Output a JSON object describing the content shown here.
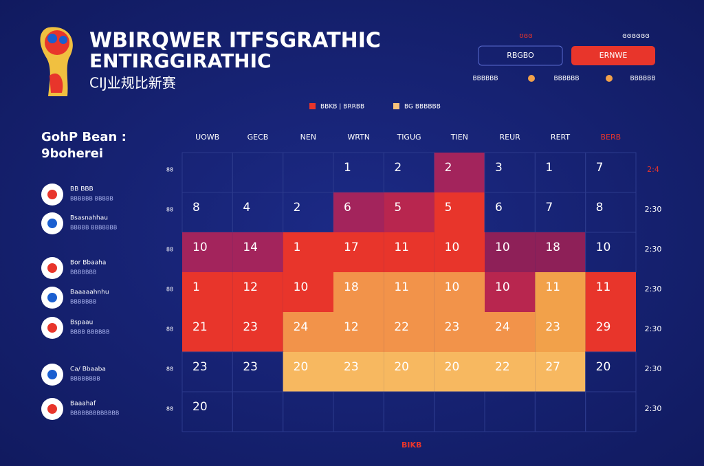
{
  "header": {
    "title_lines": [
      "WBIRQWER ITFSGRATHIC",
      "ENTIRGGIRATHIC"
    ],
    "subtitle": "CIJ业规比新赛"
  },
  "controls": {
    "top_labels": [
      "ʊɞɞ",
      "ɞɞɞɞɞɞ"
    ],
    "buttons": [
      "RBGBO",
      "ERNWE"
    ],
    "stats": [
      "BBBBBB",
      "BBBBBB",
      "BBBBBB"
    ]
  },
  "legend": {
    "items": [
      {
        "label": "BBKB  |  BRRBB",
        "color": "#e8352b"
      },
      {
        "label": "BG BBBBBB",
        "color": "#f7c27a"
      }
    ]
  },
  "sidebar": {
    "title_lines": [
      "GohP Bean :",
      "9boherei"
    ],
    "teams": [
      {
        "name": "BB BBB",
        "sub": "BBBBBB BBBBB"
      },
      {
        "name": "Bsasnahhau",
        "sub": "BBBBB BBBBBBB"
      },
      {
        "name": "Bor Bbaaha",
        "sub": "BBBBBBB"
      },
      {
        "name": "Baaaaahnhu",
        "sub": "BBBBBBB"
      },
      {
        "name": "Bspaau",
        "sub": "BBBB BBBBBB"
      },
      {
        "name": "Ca/ Bbaaba",
        "sub": "BBBBBBBB"
      },
      {
        "name": "Baaahaf",
        "sub": "BBBBBBBBBBBBB"
      }
    ]
  },
  "grid": {
    "columns": [
      "UOWB",
      "GECB",
      "NEN",
      "WRTN",
      "TIGUG",
      "TIEN",
      "REUR",
      "RERT",
      "BERB"
    ],
    "row_labels": [
      "88",
      "88",
      "88",
      "88",
      "88",
      "88",
      "88"
    ],
    "time_labels": [
      "2:4",
      "2:30",
      "2:30",
      "2:30",
      "2:30",
      "2:30",
      "2:30"
    ],
    "rows": [
      [
        null,
        null,
        null,
        1,
        2,
        2,
        3,
        1,
        7
      ],
      [
        8,
        4,
        2,
        6,
        5,
        5,
        6,
        7,
        8
      ],
      [
        10,
        14,
        1,
        17,
        11,
        10,
        10,
        18,
        10
      ],
      [
        1,
        12,
        10,
        18,
        11,
        10,
        10,
        11,
        11
      ],
      [
        21,
        23,
        24,
        12,
        22,
        23,
        24,
        23,
        29
      ],
      [
        23,
        23,
        20,
        23,
        20,
        20,
        22,
        27,
        20
      ],
      [
        20,
        null,
        null,
        null,
        null,
        null,
        null,
        null,
        null
      ]
    ],
    "fills": [
      [
        null,
        null,
        null,
        null,
        null,
        "#a3245c",
        null,
        null,
        null
      ],
      [
        null,
        null,
        null,
        "#a3245c",
        "#b8264f",
        "#e8352b",
        null,
        null,
        null
      ],
      [
        "#a3245c",
        "#a3245c",
        "#e8352b",
        "#e8352b",
        "#e8352b",
        "#e8352b",
        "#8e2058",
        "#8e2058",
        null
      ],
      [
        "#e8352b",
        "#e8352b",
        "#e8352b",
        "#f2934a",
        "#f2934a",
        "#f2934a",
        "#b8264f",
        "#f2a14a",
        "#e8352b"
      ],
      [
        "#e8352b",
        "#e8352b",
        "#f2934a",
        "#f2934a",
        "#f2934a",
        "#f2934a",
        "#f2934a",
        "#f2a14a",
        "#e8352b"
      ],
      [
        null,
        null,
        "#f7b860",
        "#f7b860",
        "#f7b860",
        "#f7b860",
        "#f7b860",
        "#f7b860",
        null
      ],
      [
        null,
        null,
        null,
        null,
        null,
        null,
        null,
        null,
        null
      ]
    ]
  },
  "footer": "BIKB"
}
